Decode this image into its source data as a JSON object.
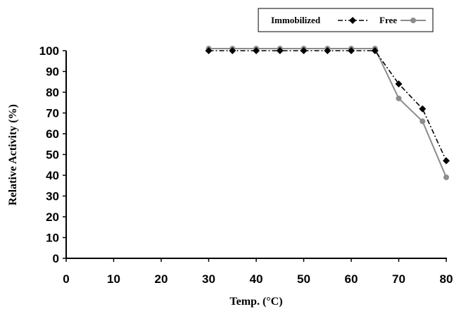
{
  "chart_data": {
    "type": "line",
    "xlabel": "Temp. (°C)",
    "ylabel": "Relative Activity (%)",
    "xlim": [
      0,
      80
    ],
    "ylim": [
      0,
      100
    ],
    "xticks": [
      0,
      10,
      20,
      30,
      40,
      50,
      60,
      70,
      80
    ],
    "yticks": [
      0,
      10,
      20,
      30,
      40,
      50,
      60,
      70,
      80,
      90,
      100
    ],
    "grid": false,
    "legend_position": "top-right",
    "series": [
      {
        "name": "Immobilized",
        "color": "#000000",
        "line_style": "dash-dot",
        "marker": "diamond",
        "x": [
          30,
          35,
          40,
          45,
          50,
          55,
          60,
          65,
          70,
          75,
          80
        ],
        "y": [
          100,
          100,
          100,
          100,
          100,
          100,
          100,
          100,
          84,
          72,
          47
        ]
      },
      {
        "name": "Free",
        "color": "#8c8c8c",
        "line_style": "solid",
        "marker": "circle",
        "x": [
          30,
          35,
          40,
          45,
          50,
          55,
          60,
          65,
          70,
          75,
          80
        ],
        "y": [
          101,
          101,
          101,
          101,
          101,
          101,
          101,
          101,
          77,
          66,
          39
        ]
      }
    ]
  }
}
